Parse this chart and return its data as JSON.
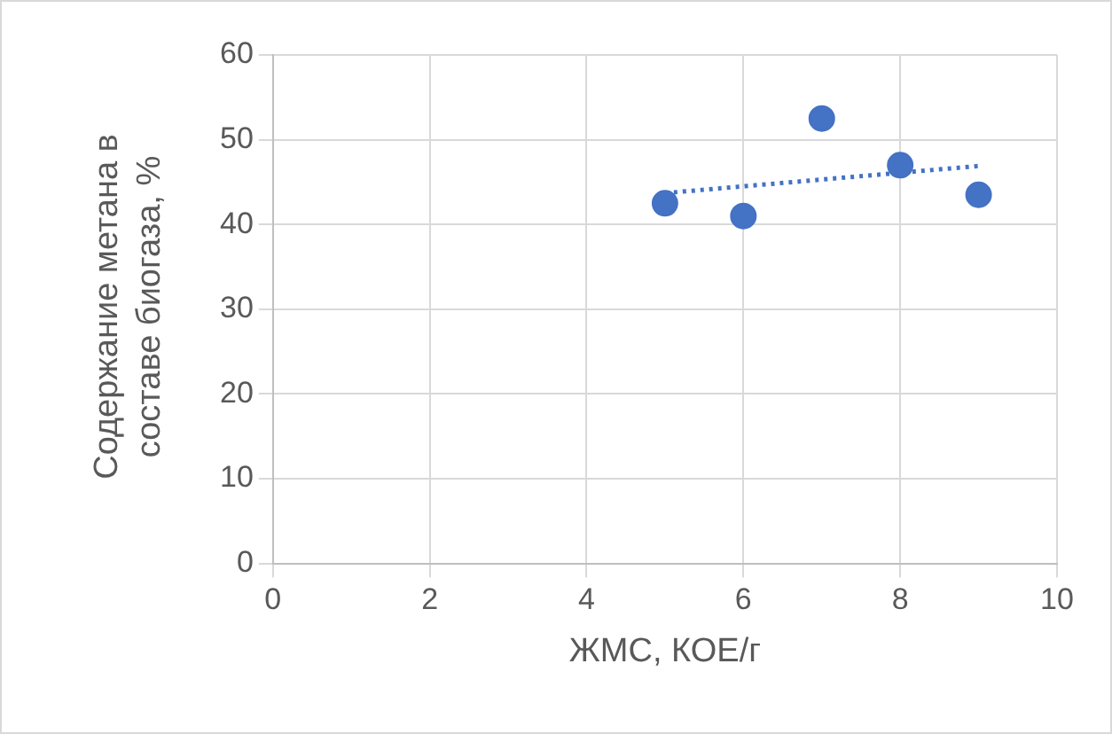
{
  "chart_data": {
    "type": "scatter",
    "xlabel": "ЖМС, КОЕ/г",
    "ylabel": "Содержание метана в составе биогаза, %",
    "xlim": [
      0,
      10
    ],
    "xticks": [
      0,
      2,
      4,
      6,
      8,
      10
    ],
    "ylim": [
      0,
      60
    ],
    "yticks": [
      0,
      10,
      20,
      30,
      40,
      50,
      60
    ],
    "grid": true,
    "marker": "circle",
    "series": [
      {
        "type": "scatter",
        "color": "#4472c4",
        "x": [
          5,
          6,
          7,
          8,
          9
        ],
        "values": [
          42.5,
          41,
          52.5,
          47,
          43.5
        ]
      },
      {
        "type": "line",
        "color": "#4472c4",
        "line_style": "dotted",
        "marker": "none",
        "x": [
          5,
          9
        ],
        "values": [
          43.7,
          46.9
        ]
      }
    ]
  }
}
